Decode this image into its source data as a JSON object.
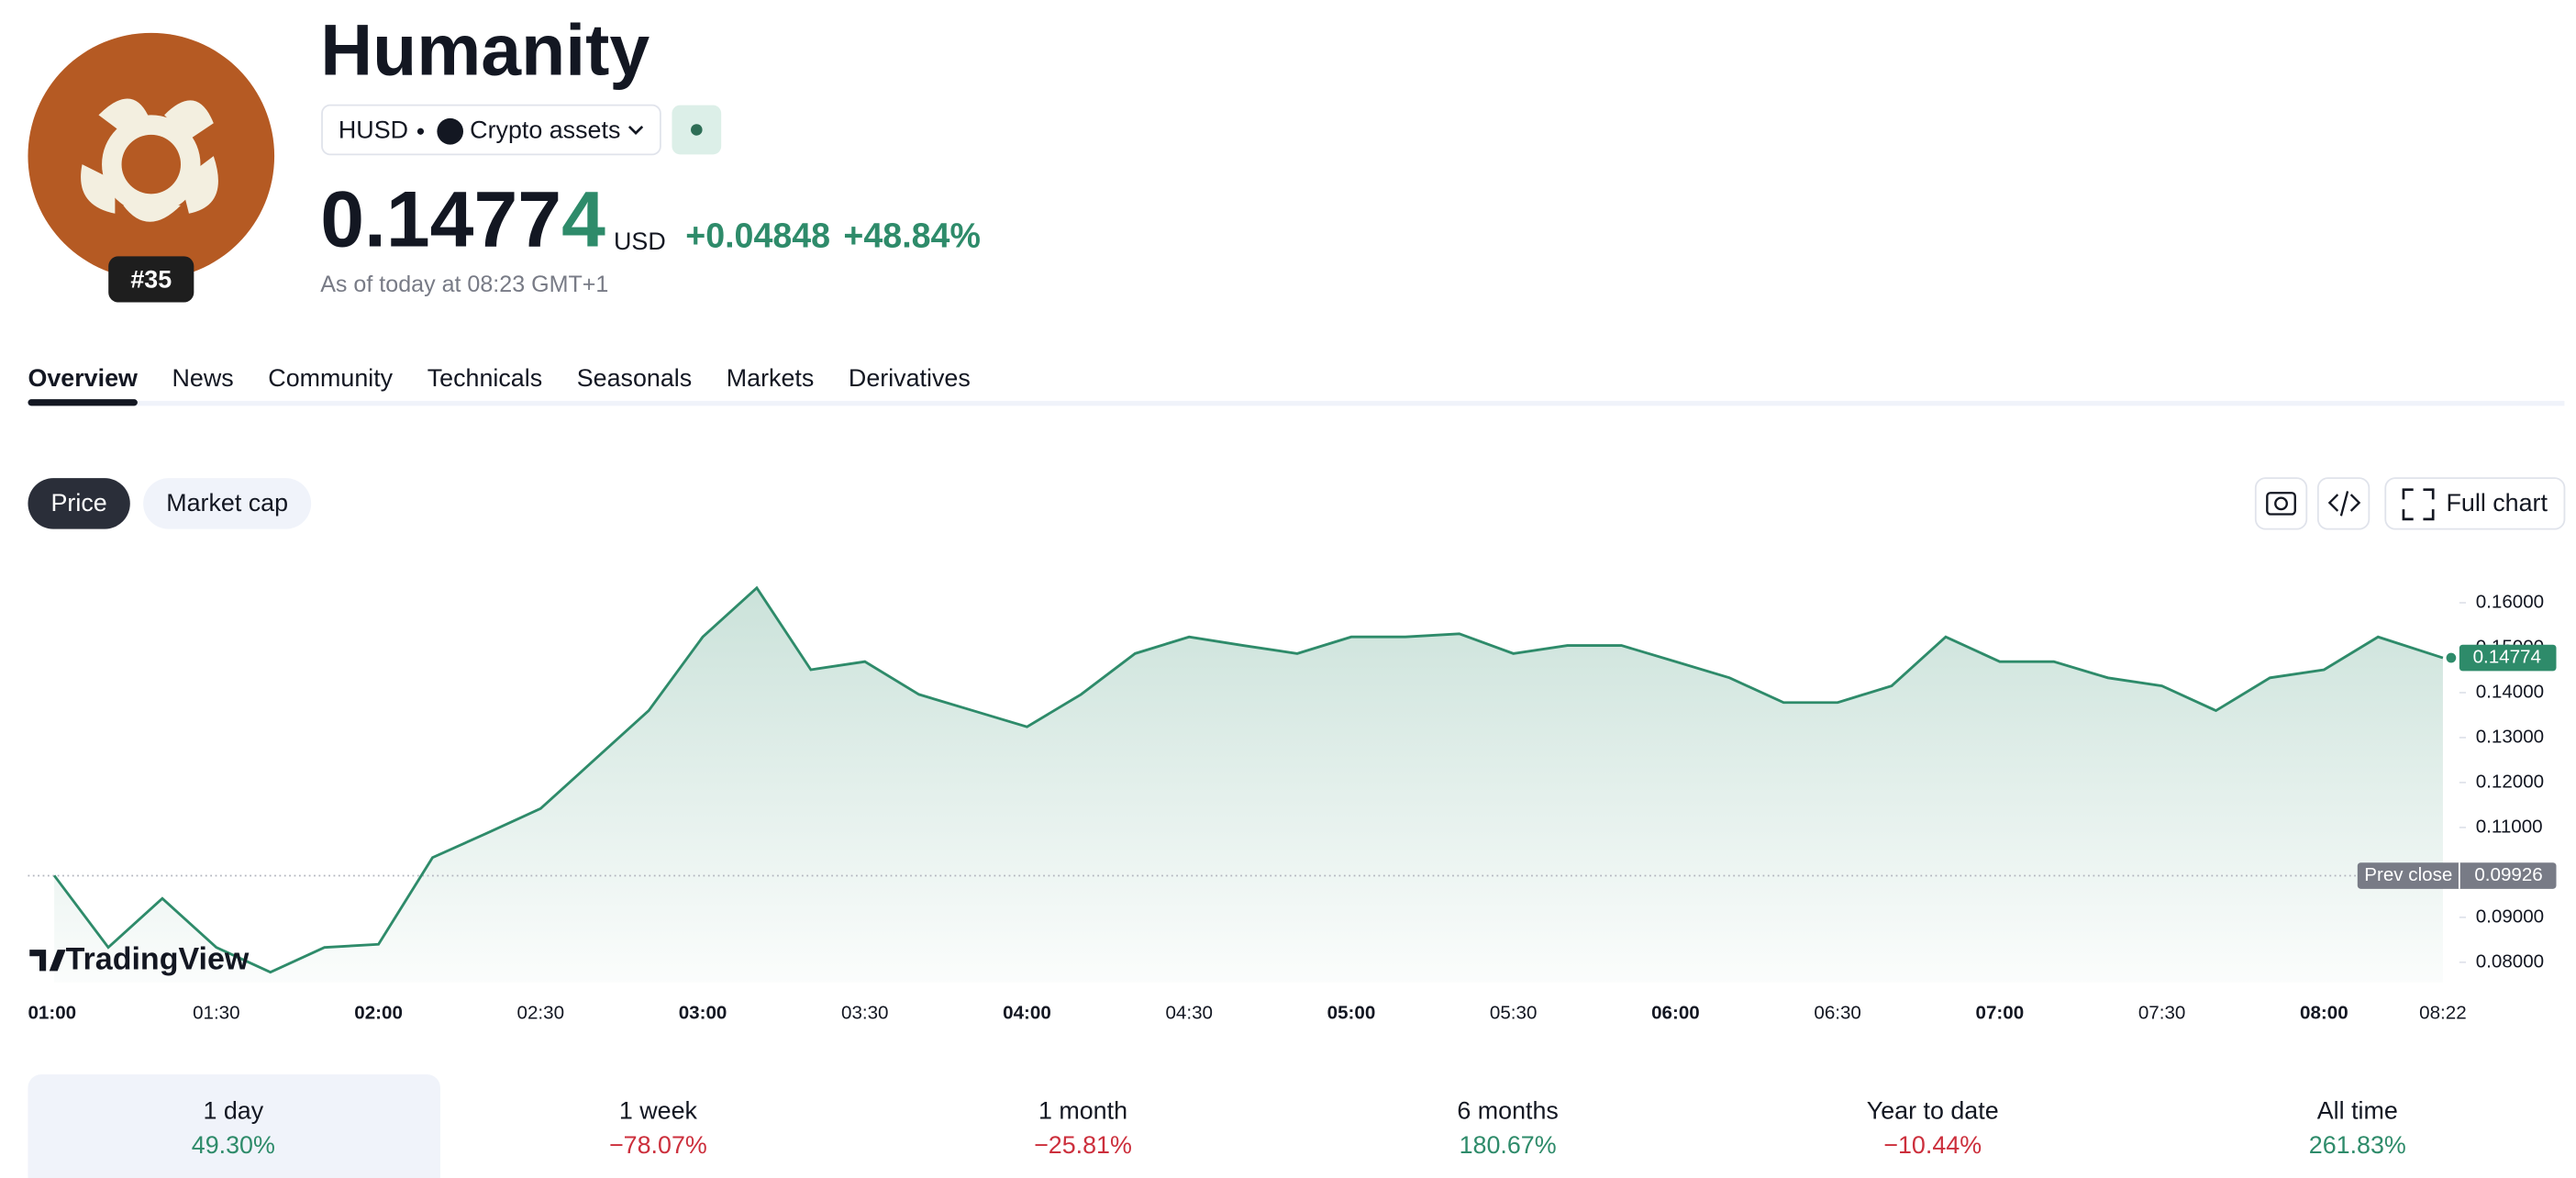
{
  "header": {
    "title": "Humanity",
    "ticker": "HUSD",
    "category": "Crypto assets",
    "rank": "#35",
    "price_main": "0.1477",
    "price_last_digit": "4",
    "currency": "USD",
    "change": "+0.04848",
    "change_percent": "+48.84%",
    "as_of": "As of today at 08:23 GMT+1"
  },
  "tabs": [
    "Overview",
    "News",
    "Community",
    "Technicals",
    "Seasonals",
    "Markets",
    "Derivatives"
  ],
  "chart_buttons": [
    "Price",
    "Market cap"
  ],
  "full_chart": "Full chart",
  "watermark": "TradingView",
  "chart_data": {
    "type": "line",
    "x": [
      "01:00",
      "01:10",
      "01:20",
      "01:30",
      "01:40",
      "01:50",
      "02:00",
      "02:10",
      "02:20",
      "02:30",
      "02:40",
      "02:50",
      "03:00",
      "03:10",
      "03:20",
      "03:30",
      "03:40",
      "03:50",
      "04:00",
      "04:10",
      "04:20",
      "04:30",
      "04:40",
      "04:50",
      "05:00",
      "05:10",
      "05:20",
      "05:30",
      "05:40",
      "05:50",
      "06:00",
      "06:10",
      "06:20",
      "06:30",
      "06:40",
      "06:50",
      "07:00",
      "07:10",
      "07:20",
      "07:30",
      "07:40",
      "07:50",
      "08:00",
      "08:10",
      "08:22"
    ],
    "series": [
      {
        "name": "HUSD",
        "color": "#2e8b6a",
        "values": [
          0.0993,
          0.0833,
          0.0942,
          0.0833,
          0.0778,
          0.0833,
          0.084,
          0.1033,
          0.1087,
          0.1142,
          0.1251,
          0.136,
          0.1524,
          0.1633,
          0.1451,
          0.1469,
          0.1396,
          0.136,
          0.1324,
          0.1396,
          0.1487,
          0.1524,
          0.1505,
          0.1487,
          0.1524,
          0.1524,
          0.1531,
          0.1487,
          0.1505,
          0.1505,
          0.1469,
          0.1433,
          0.1378,
          0.1378,
          0.1415,
          0.1524,
          0.1469,
          0.1469,
          0.1433,
          0.1415,
          0.136,
          0.1433,
          0.1451,
          0.1524,
          0.14774
        ]
      }
    ],
    "last_value_label": "0.14774",
    "prev_close": {
      "label": "Prev close",
      "value": 0.09926,
      "value_label": "0.09926"
    },
    "ylim": [
      0.0755,
      0.168
    ],
    "yticks": [
      {
        "value": 0.08,
        "label": "0.08000"
      },
      {
        "value": 0.09,
        "label": "0.09000"
      },
      {
        "value": 0.11,
        "label": "0.11000"
      },
      {
        "value": 0.12,
        "label": "0.12000"
      },
      {
        "value": 0.13,
        "label": "0.13000"
      },
      {
        "value": 0.14,
        "label": "0.14000"
      },
      {
        "value": 0.15,
        "label": "0.15000"
      },
      {
        "value": 0.16,
        "label": "0.16000"
      }
    ],
    "xticks": [
      "01:00",
      "01:30",
      "02:00",
      "02:30",
      "03:00",
      "03:30",
      "04:00",
      "04:30",
      "05:00",
      "05:30",
      "06:00",
      "06:30",
      "07:00",
      "07:30",
      "08:00",
      "08:22"
    ]
  },
  "returns": [
    {
      "period": "1 day",
      "change": "49.30%"
    },
    {
      "period": "1 week",
      "change": "−78.07%"
    },
    {
      "period": "1 month",
      "change": "−25.81%"
    },
    {
      "period": "6 months",
      "change": "180.67%"
    },
    {
      "period": "Year to date",
      "change": "−10.44%"
    },
    {
      "period": "All time",
      "change": "261.83%"
    }
  ]
}
